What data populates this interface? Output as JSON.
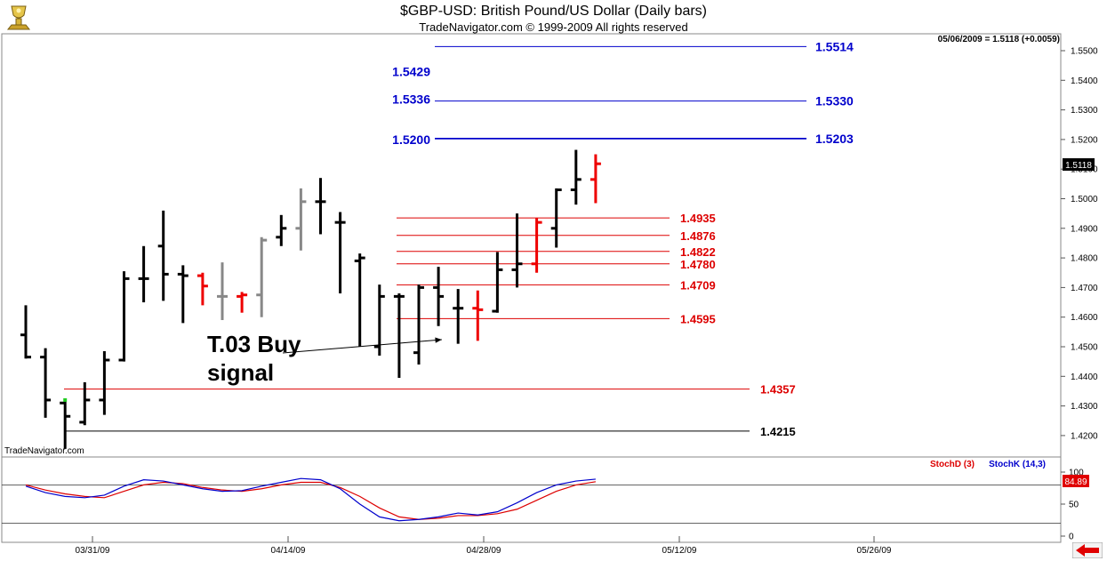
{
  "header": {
    "title": "$GBP-USD:  British Pound/US Dollar  (Daily bars)",
    "subtitle": "TradeNavigator.com © 1999-2009 All rights reserved"
  },
  "quote_readout": "05/06/2009 = 1.5118 (+0.0059)",
  "watermark": "TradeNavigator.com",
  "last_price_tag": "1.5118",
  "icons": {
    "logo": "trophy-logo-icon",
    "scroll": "red-left-arrow-icon"
  },
  "colors": {
    "up": "#000000",
    "down": "#ee0000",
    "neutral": "#888888",
    "target_line": "#0000cc",
    "support_line": "#dd0000",
    "stoch_d": "#dd0000",
    "stoch_k": "#0000cc"
  },
  "chart_data": [
    {
      "type": "ohlc",
      "title": "$GBP-USD:  British Pound/US Dollar  (Daily bars)",
      "ylim": [
        1.415,
        1.556
      ],
      "y_ticks": [
        "1.5500",
        "1.5400",
        "1.5300",
        "1.5200",
        "1.5100",
        "1.5000",
        "1.4900",
        "1.4800",
        "1.4700",
        "1.4600",
        "1.4500",
        "1.4400",
        "1.4300",
        "1.4200"
      ],
      "x_ticks": [
        "03/31/09",
        "04/14/09",
        "04/28/09",
        "05/12/09",
        "05/26/09"
      ],
      "grid": false,
      "bars": [
        {
          "o": 1.454,
          "h": 1.464,
          "l": 1.446,
          "c": 1.4465,
          "color": "up"
        },
        {
          "o": 1.4465,
          "h": 1.4495,
          "l": 1.426,
          "c": 1.432,
          "color": "up"
        },
        {
          "o": 1.431,
          "h": 1.432,
          "l": 1.4155,
          "c": 1.4265,
          "color": "up"
        },
        {
          "o": 1.4245,
          "h": 1.438,
          "l": 1.4235,
          "c": 1.432,
          "color": "up"
        },
        {
          "o": 1.432,
          "h": 1.4485,
          "l": 1.427,
          "c": 1.4455,
          "color": "up"
        },
        {
          "o": 1.4455,
          "h": 1.4755,
          "l": 1.445,
          "c": 1.473,
          "color": "up"
        },
        {
          "o": 1.473,
          "h": 1.484,
          "l": 1.465,
          "c": 1.473,
          "color": "up"
        },
        {
          "o": 1.484,
          "h": 1.496,
          "l": 1.4655,
          "c": 1.4745,
          "color": "up"
        },
        {
          "o": 1.4745,
          "h": 1.4775,
          "l": 1.458,
          "c": 1.474,
          "color": "up"
        },
        {
          "o": 1.474,
          "h": 1.475,
          "l": 1.464,
          "c": 1.4705,
          "color": "down"
        },
        {
          "o": 1.467,
          "h": 1.4785,
          "l": 1.459,
          "c": 1.467,
          "color": "neutral"
        },
        {
          "o": 1.467,
          "h": 1.4685,
          "l": 1.4615,
          "c": 1.4675,
          "color": "down"
        },
        {
          "o": 1.4675,
          "h": 1.487,
          "l": 1.46,
          "c": 1.486,
          "color": "neutral"
        },
        {
          "o": 1.487,
          "h": 1.4945,
          "l": 1.484,
          "c": 1.49,
          "color": "up"
        },
        {
          "o": 1.49,
          "h": 1.5035,
          "l": 1.4825,
          "c": 1.499,
          "color": "neutral"
        },
        {
          "o": 1.499,
          "h": 1.507,
          "l": 1.488,
          "c": 1.499,
          "color": "up"
        },
        {
          "o": 1.492,
          "h": 1.4955,
          "l": 1.468,
          "c": 1.492,
          "color": "up"
        },
        {
          "o": 1.479,
          "h": 1.4815,
          "l": 1.45,
          "c": 1.48,
          "color": "up"
        },
        {
          "o": 1.45,
          "h": 1.471,
          "l": 1.447,
          "c": 1.467,
          "color": "up"
        },
        {
          "o": 1.467,
          "h": 1.468,
          "l": 1.4395,
          "c": 1.467,
          "color": "up"
        },
        {
          "o": 1.448,
          "h": 1.471,
          "l": 1.444,
          "c": 1.47,
          "color": "up"
        },
        {
          "o": 1.47,
          "h": 1.477,
          "l": 1.457,
          "c": 1.467,
          "color": "up"
        },
        {
          "o": 1.463,
          "h": 1.4695,
          "l": 1.451,
          "c": 1.463,
          "color": "up"
        },
        {
          "o": 1.463,
          "h": 1.469,
          "l": 1.452,
          "c": 1.4625,
          "color": "down"
        },
        {
          "o": 1.462,
          "h": 1.482,
          "l": 1.4615,
          "c": 1.476,
          "color": "up"
        },
        {
          "o": 1.476,
          "h": 1.495,
          "l": 1.47,
          "c": 1.478,
          "color": "up"
        },
        {
          "o": 1.478,
          "h": 1.4935,
          "l": 1.475,
          "c": 1.492,
          "color": "down"
        },
        {
          "o": 1.49,
          "h": 1.5035,
          "l": 1.4835,
          "c": 1.503,
          "color": "up"
        },
        {
          "o": 1.503,
          "h": 1.5165,
          "l": 1.498,
          "c": 1.5065,
          "color": "up"
        },
        {
          "o": 1.5065,
          "h": 1.515,
          "l": 1.4985,
          "c": 1.5118,
          "color": "down"
        }
      ],
      "levels": [
        {
          "value": 1.5514,
          "label": "1.5514",
          "color": "target_line",
          "side": "right"
        },
        {
          "value": 1.5429,
          "label": "1.5429",
          "color": "target_line",
          "side": "left"
        },
        {
          "value": 1.5336,
          "label": "1.5336",
          "color": "target_line",
          "side": "left"
        },
        {
          "value": 1.533,
          "label": "1.5330",
          "color": "target_line",
          "side": "right"
        },
        {
          "value": 1.52,
          "label": "1.5200",
          "color": "target_line",
          "side": "left"
        },
        {
          "value": 1.5203,
          "label": "1.5203",
          "color": "target_line",
          "side": "right"
        },
        {
          "value": 1.4935,
          "label": "1.4935",
          "color": "support_line",
          "side": "right"
        },
        {
          "value": 1.4876,
          "label": "1.4876",
          "color": "support_line",
          "side": "right"
        },
        {
          "value": 1.4822,
          "label": "1.4822",
          "color": "support_line",
          "side": "right"
        },
        {
          "value": 1.478,
          "label": "1.4780",
          "color": "support_line",
          "side": "right"
        },
        {
          "value": 1.4709,
          "label": "1.4709",
          "color": "support_line",
          "side": "right"
        },
        {
          "value": 1.4595,
          "label": "1.4595",
          "color": "support_line",
          "side": "right"
        },
        {
          "value": 1.4357,
          "label": "1.4357",
          "color": "support_line",
          "side": "right"
        },
        {
          "value": 1.4215,
          "label": "1.4215",
          "color": "up",
          "side": "right"
        }
      ],
      "annotation": {
        "lines": [
          "T.03 Buy",
          "signal"
        ],
        "points_to_bar": 19,
        "points_to_price": 1.456
      }
    },
    {
      "type": "line",
      "legend": [
        "StochD (3)",
        "StochK (14,3)"
      ],
      "ylim": [
        0,
        100
      ],
      "y_ticks": [
        "100",
        "50",
        "0"
      ],
      "reference_lines": [
        80,
        20
      ],
      "value_tag": "84.89",
      "series": [
        {
          "name": "StochD (3)",
          "values": [
            80,
            72,
            66,
            62,
            60,
            70,
            80,
            84,
            82,
            76,
            72,
            70,
            74,
            80,
            84,
            84,
            76,
            62,
            44,
            30,
            26,
            28,
            32,
            32,
            35,
            42,
            56,
            70,
            80,
            85
          ]
        },
        {
          "name": "StochK (14,3)",
          "values": [
            78,
            68,
            62,
            60,
            64,
            78,
            88,
            86,
            80,
            74,
            70,
            71,
            78,
            84,
            90,
            88,
            74,
            50,
            30,
            24,
            26,
            30,
            36,
            33,
            38,
            52,
            68,
            80,
            86,
            89
          ]
        }
      ]
    }
  ]
}
